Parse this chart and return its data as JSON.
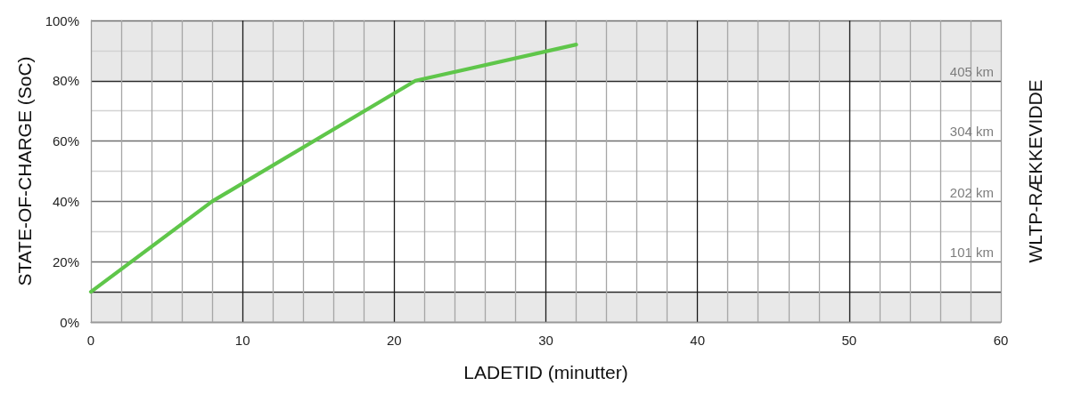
{
  "chart_data": {
    "type": "line",
    "xlabel": "LADETID (minutter)",
    "ylabel": "STATE-OF-CHARGE (SoC)",
    "y2label": "WLTP-RÆKKEVIDDE",
    "x": [
      0,
      8,
      21.4,
      32
    ],
    "values": [
      10,
      40,
      80,
      92
    ],
    "color": "#5fc64a",
    "xlim": [
      0,
      60
    ],
    "xticks": [
      0,
      {
        "value": 2,
        "label": null
      },
      {
        "value": 4,
        "label": null
      },
      {
        "value": 6,
        "label": null
      },
      {
        "value": 8,
        "label": null
      },
      10,
      {
        "value": 12,
        "label": null
      },
      {
        "value": 14,
        "label": null
      },
      {
        "value": 16,
        "label": null
      },
      {
        "value": 18,
        "label": null
      },
      20,
      {
        "value": 22,
        "label": null
      },
      {
        "value": 24,
        "label": null
      },
      {
        "value": 26,
        "label": null
      },
      {
        "value": 28,
        "label": null
      },
      30,
      {
        "value": 32,
        "label": null
      },
      {
        "value": 34,
        "label": null
      },
      {
        "value": 36,
        "label": null
      },
      {
        "value": 38,
        "label": null
      },
      40,
      {
        "value": 42,
        "label": null
      },
      {
        "value": 44,
        "label": null
      },
      {
        "value": 46,
        "label": null
      },
      {
        "value": 48,
        "label": null
      },
      50,
      {
        "value": 52,
        "label": null
      },
      {
        "value": 54,
        "label": null
      },
      {
        "value": 56,
        "label": null
      },
      {
        "value": 58,
        "label": null
      },
      60
    ],
    "ylim": [
      0,
      100
    ],
    "yticks": [
      {
        "value": 0,
        "label": "0%"
      },
      {
        "value": 10,
        "label": null
      },
      {
        "value": 20,
        "label": "20%"
      },
      {
        "value": 30,
        "label": null
      },
      {
        "value": 40,
        "label": "40%"
      },
      {
        "value": 50,
        "label": null
      },
      {
        "value": 60,
        "label": "60%"
      },
      {
        "value": 70,
        "label": null
      },
      {
        "value": 80,
        "label": "80%"
      },
      {
        "value": 90,
        "label": null
      },
      {
        "value": 100,
        "label": "100%"
      }
    ],
    "y2lim": [
      0,
      506
    ],
    "y2ticks": [
      {
        "value": 101,
        "label": "101 km"
      },
      {
        "value": 202,
        "label": "202 km"
      },
      {
        "value": 304,
        "label": "304 km"
      },
      {
        "value": 405,
        "label": "405 km"
      }
    ],
    "bands": [
      {
        "axis": "y",
        "from": 0,
        "to": 10,
        "color": "#e8e8e8"
      },
      {
        "axis": "y",
        "from": 80,
        "to": 100,
        "color": "#e8e8e8"
      }
    ],
    "grid": true
  }
}
